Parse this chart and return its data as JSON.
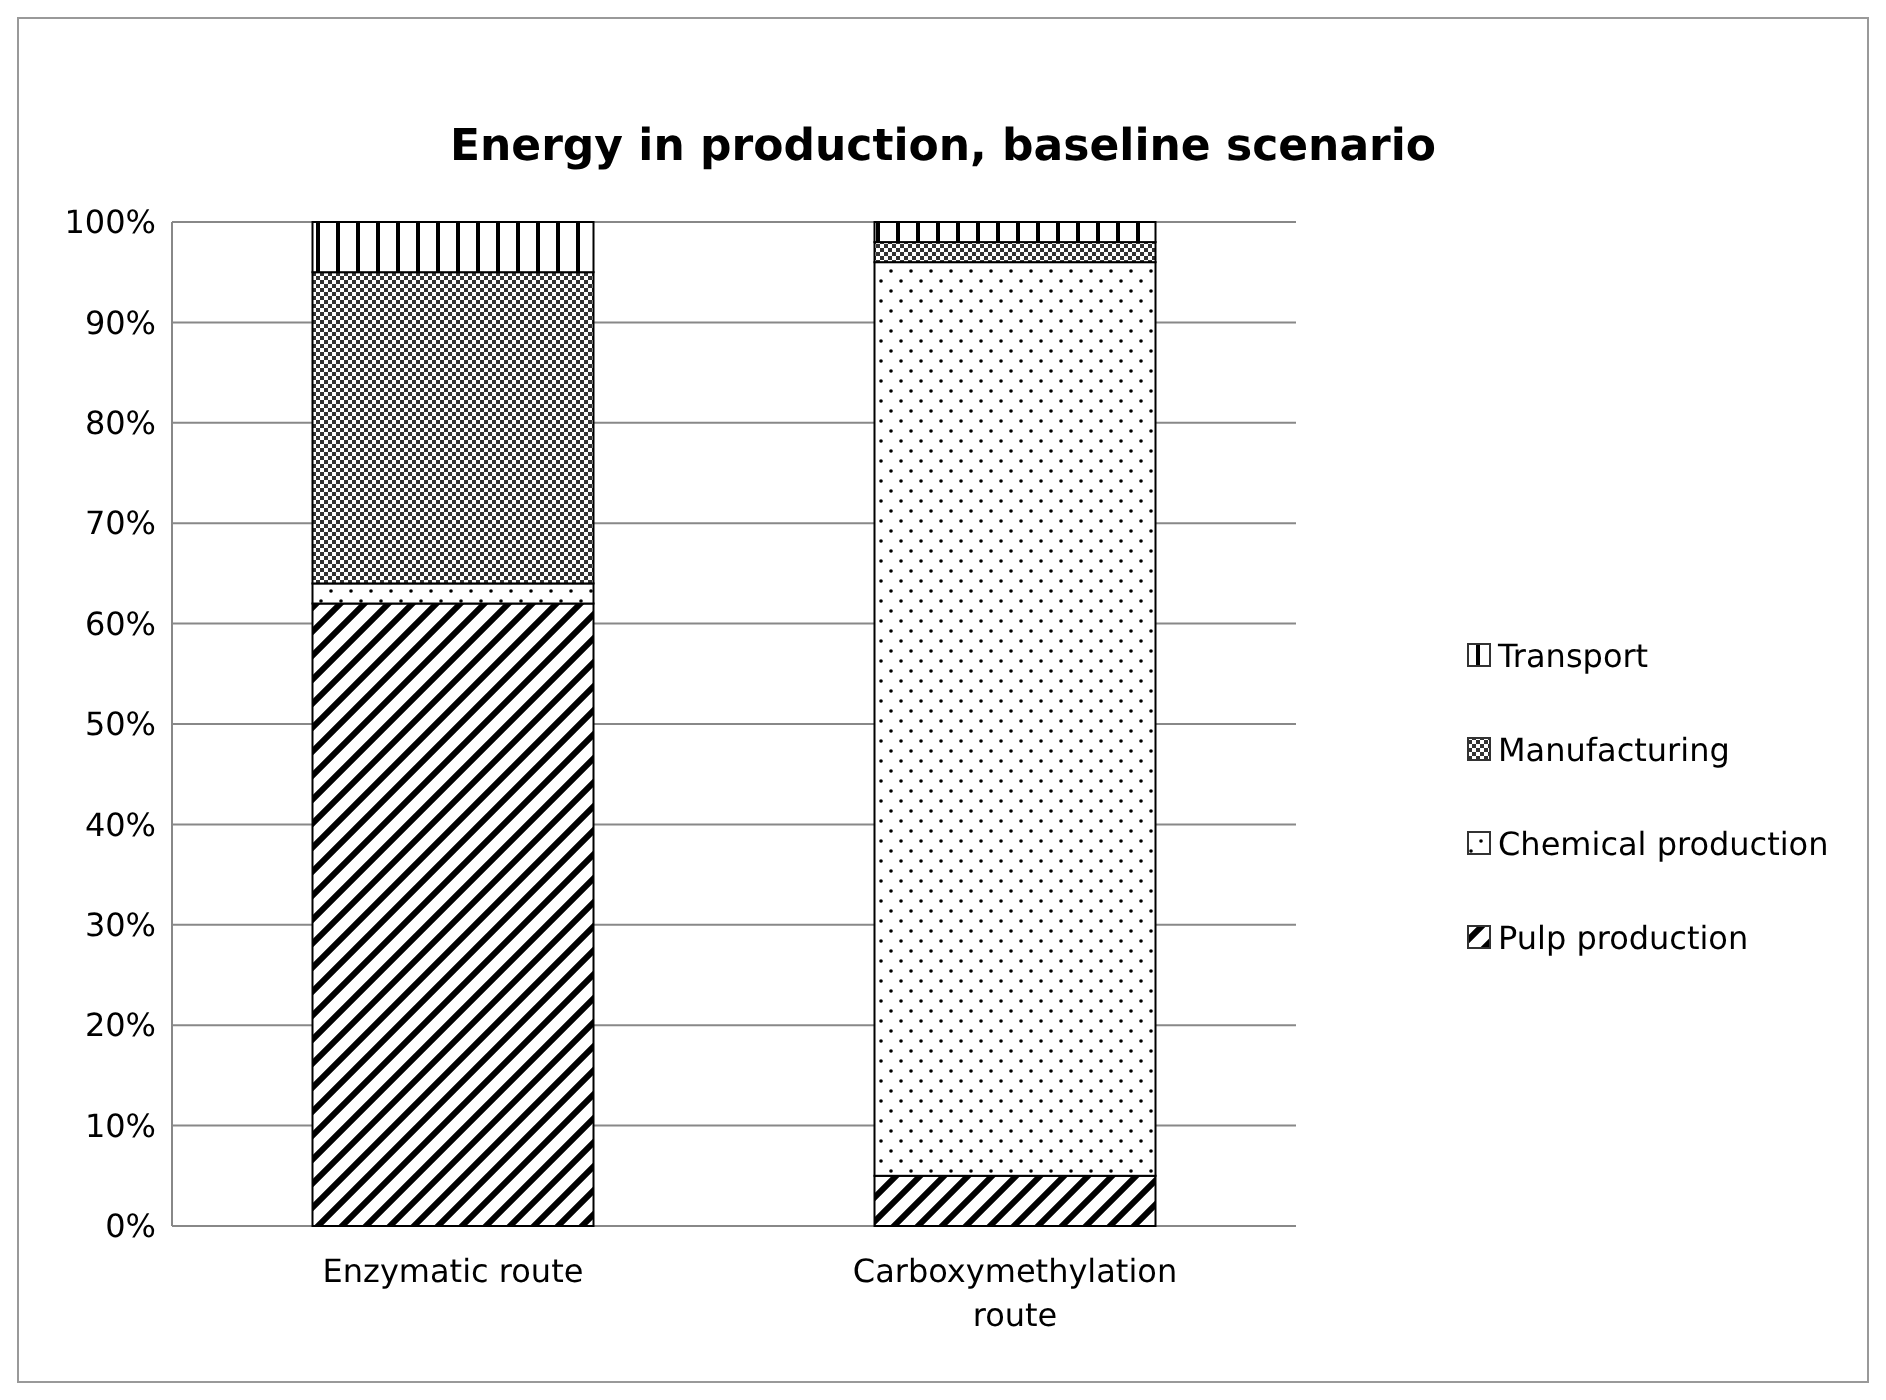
{
  "chart_data": {
    "type": "bar",
    "title": "Energy in production, baseline scenario",
    "categories": [
      "Enzymatic route",
      "Carboxymethylation route"
    ],
    "stacked": true,
    "series": [
      {
        "name": "Pulp production",
        "color": "#000000",
        "values": [
          62,
          5
        ]
      },
      {
        "name": "Chemical production",
        "color": "#000000",
        "values": [
          2,
          91
        ]
      },
      {
        "name": "Manufacturing",
        "color": "#000000",
        "values": [
          31,
          2
        ]
      },
      {
        "name": "Transport",
        "color": "#000000",
        "values": [
          5,
          2
        ]
      }
    ],
    "ylim": [
      0,
      100
    ],
    "yticks": [
      {
        "value": 0,
        "label": "0%"
      },
      {
        "value": 10,
        "label": "10%"
      },
      {
        "value": 20,
        "label": "20%"
      },
      {
        "value": 30,
        "label": "30%"
      },
      {
        "value": 40,
        "label": "40%"
      },
      {
        "value": 50,
        "label": "50%"
      },
      {
        "value": 60,
        "label": "60%"
      },
      {
        "value": 70,
        "label": "70%"
      },
      {
        "value": 80,
        "label": "80%"
      },
      {
        "value": 90,
        "label": "90%"
      },
      {
        "value": 100,
        "label": "100%"
      }
    ],
    "grid": "y",
    "legend": "right"
  }
}
